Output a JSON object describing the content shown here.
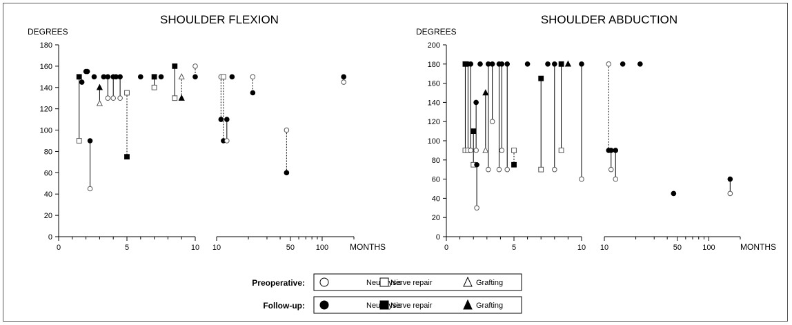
{
  "chart_data": [
    {
      "type": "scatter",
      "title": "SHOULDER FLEXION",
      "ylabel": "DEGREES",
      "xlabel": "MONTHS",
      "ylim": [
        0,
        180
      ],
      "yticks": [
        0,
        20,
        40,
        60,
        80,
        100,
        120,
        140,
        160,
        180
      ],
      "xscale": "piecewise: linear 0-10 months, logarithmic 10-200 months",
      "xtick_labels_linear": [
        "0",
        "5",
        "10"
      ],
      "xtick_labels_log": [
        "10",
        "50",
        "100"
      ],
      "xtick_values_log": [
        10,
        50,
        100
      ],
      "grid": false,
      "pairs": [
        {
          "x": 1.5,
          "pre": {
            "type": "nerve repair",
            "v": 90
          },
          "post": {
            "type": "nerve repair",
            "v": 150
          },
          "line": "solid"
        },
        {
          "x": 1.7,
          "post": {
            "type": "neurolysis",
            "v": 145
          }
        },
        {
          "x": 2.0,
          "post": {
            "type": "neurolysis",
            "v": 155
          }
        },
        {
          "x": 2.1,
          "post": {
            "type": "neurolysis",
            "v": 155
          }
        },
        {
          "x": 2.3,
          "pre": {
            "type": "neurolysis",
            "v": 45
          },
          "post": {
            "type": "neurolysis",
            "v": 90
          },
          "line": "solid"
        },
        {
          "x": 2.6,
          "post": {
            "type": "neurolysis",
            "v": 150
          }
        },
        {
          "x": 3.0,
          "pre": {
            "type": "grafting",
            "v": 125
          },
          "post": {
            "type": "grafting",
            "v": 140
          },
          "line": "solid"
        },
        {
          "x": 3.3,
          "post": {
            "type": "neurolysis",
            "v": 150
          }
        },
        {
          "x": 3.6,
          "pre": {
            "type": "neurolysis",
            "v": 130
          },
          "post": {
            "type": "neurolysis",
            "v": 150
          },
          "line": "solid"
        },
        {
          "x": 4.0,
          "pre": {
            "type": "neurolysis",
            "v": 130
          },
          "post": {
            "type": "neurolysis",
            "v": 150
          },
          "line": "solid"
        },
        {
          "x": 4.2,
          "post": {
            "type": "neurolysis",
            "v": 150
          }
        },
        {
          "x": 4.5,
          "pre": {
            "type": "neurolysis",
            "v": 130
          },
          "post": {
            "type": "neurolysis",
            "v": 150
          },
          "line": "solid"
        },
        {
          "x": 5.0,
          "pre": {
            "type": "nerve repair",
            "v": 135
          },
          "post": {
            "type": "nerve repair",
            "v": 75
          },
          "line": "dotted"
        },
        {
          "x": 6.0,
          "post": {
            "type": "neurolysis",
            "v": 150
          }
        },
        {
          "x": 7.0,
          "pre": {
            "type": "nerve repair",
            "v": 140
          },
          "post": {
            "type": "nerve repair",
            "v": 150
          },
          "line": "solid"
        },
        {
          "x": 7.5,
          "post": {
            "type": "neurolysis",
            "v": 150
          }
        },
        {
          "x": 8.5,
          "pre": {
            "type": "nerve repair",
            "v": 130
          },
          "post": {
            "type": "nerve repair",
            "v": 160
          },
          "line": "solid"
        },
        {
          "x": 9.0,
          "pre": {
            "type": "grafting",
            "v": 150
          },
          "post": {
            "type": "grafting",
            "v": 130
          },
          "line": "dotted"
        },
        {
          "x": 10.0,
          "pre": {
            "type": "neurolysis",
            "v": 160
          },
          "post": {
            "type": "neurolysis",
            "v": 150
          },
          "line": "dotted"
        },
        {
          "x": 11.0,
          "pre": {
            "type": "neurolysis",
            "v": 150
          },
          "post": {
            "type": "neurolysis",
            "v": 110
          },
          "line": "dotted"
        },
        {
          "x": 11.6,
          "pre": {
            "type": "nerve repair",
            "v": 150
          },
          "post": {
            "type": "neurolysis",
            "v": 90
          },
          "line": "dotted"
        },
        {
          "x": 12.5,
          "pre": {
            "type": "neurolysis",
            "v": 90
          },
          "post": {
            "type": "neurolysis",
            "v": 110
          },
          "line": "solid"
        },
        {
          "x": 14.0,
          "post": {
            "type": "neurolysis",
            "v": 150
          }
        },
        {
          "x": 22.0,
          "pre": {
            "type": "neurolysis",
            "v": 150
          },
          "post": {
            "type": "neurolysis",
            "v": 135
          },
          "line": "dotted"
        },
        {
          "x": 46.0,
          "pre": {
            "type": "neurolysis",
            "v": 100
          },
          "post": {
            "type": "neurolysis",
            "v": 60
          },
          "line": "dotted"
        },
        {
          "x": 160.0,
          "pre": {
            "type": "neurolysis",
            "v": 145
          },
          "post": {
            "type": "neurolysis",
            "v": 150
          },
          "line": "solid"
        }
      ]
    },
    {
      "type": "scatter",
      "title": "SHOULDER ABDUCTION",
      "ylabel": "DEGREES",
      "xlabel": "MONTHS",
      "ylim": [
        0,
        200
      ],
      "yticks": [
        0,
        20,
        40,
        60,
        80,
        100,
        120,
        140,
        160,
        180,
        200
      ],
      "xscale": "piecewise: linear 0-10 months, logarithmic 10-200 months",
      "xtick_labels_linear": [
        "0",
        "5",
        "10"
      ],
      "xtick_labels_log": [
        "10",
        "50",
        "100"
      ],
      "xtick_values_log": [
        10,
        50,
        100
      ],
      "grid": false,
      "pairs": [
        {
          "x": 1.4,
          "pre": {
            "type": "nerve repair",
            "v": 90
          },
          "post": {
            "type": "nerve repair",
            "v": 180
          },
          "line": "solid"
        },
        {
          "x": 1.6,
          "pre": {
            "type": "nerve repair",
            "v": 90
          },
          "post": {
            "type": "neurolysis",
            "v": 180
          },
          "line": "solid"
        },
        {
          "x": 1.8,
          "pre": {
            "type": "neurolysis",
            "v": 90
          },
          "post": {
            "type": "neurolysis",
            "v": 180
          },
          "line": "solid"
        },
        {
          "x": 2.0,
          "pre": {
            "type": "nerve repair",
            "v": 75
          },
          "post": {
            "type": "nerve repair",
            "v": 110
          },
          "line": "solid"
        },
        {
          "x": 2.2,
          "pre": {
            "type": "neurolysis",
            "v": 90
          },
          "post": {
            "type": "neurolysis",
            "v": 140
          },
          "line": "solid"
        },
        {
          "x": 2.25,
          "pre": {
            "type": "neurolysis",
            "v": 30
          },
          "post": {
            "type": "neurolysis",
            "v": 75
          },
          "line": "solid"
        },
        {
          "x": 2.5,
          "post": {
            "type": "neurolysis",
            "v": 180
          }
        },
        {
          "x": 2.9,
          "pre": {
            "type": "grafting",
            "v": 90
          },
          "post": {
            "type": "grafting",
            "v": 150
          },
          "line": "solid"
        },
        {
          "x": 3.1,
          "pre": {
            "type": "neurolysis",
            "v": 70
          },
          "post": {
            "type": "neurolysis",
            "v": 180
          },
          "line": "solid"
        },
        {
          "x": 3.4,
          "pre": {
            "type": "neurolysis",
            "v": 120
          },
          "post": {
            "type": "neurolysis",
            "v": 180
          },
          "line": "solid"
        },
        {
          "x": 3.9,
          "pre": {
            "type": "neurolysis",
            "v": 70
          },
          "post": {
            "type": "neurolysis",
            "v": 180
          },
          "line": "solid"
        },
        {
          "x": 4.1,
          "pre": {
            "type": "neurolysis",
            "v": 90
          },
          "post": {
            "type": "neurolysis",
            "v": 180
          },
          "line": "solid"
        },
        {
          "x": 4.5,
          "pre": {
            "type": "neurolysis",
            "v": 70
          },
          "post": {
            "type": "neurolysis",
            "v": 180
          },
          "line": "solid"
        },
        {
          "x": 5.0,
          "pre": {
            "type": "nerve repair",
            "v": 90
          },
          "post": {
            "type": "nerve repair",
            "v": 75
          },
          "line": "dotted"
        },
        {
          "x": 6.0,
          "post": {
            "type": "neurolysis",
            "v": 180
          }
        },
        {
          "x": 7.0,
          "pre": {
            "type": "nerve repair",
            "v": 70
          },
          "post": {
            "type": "nerve repair",
            "v": 165
          },
          "line": "solid"
        },
        {
          "x": 7.5,
          "post": {
            "type": "neurolysis",
            "v": 180
          }
        },
        {
          "x": 8.0,
          "pre": {
            "type": "neurolysis",
            "v": 70
          },
          "post": {
            "type": "neurolysis",
            "v": 180
          },
          "line": "solid"
        },
        {
          "x": 8.5,
          "pre": {
            "type": "nerve repair",
            "v": 90
          },
          "post": {
            "type": "nerve repair",
            "v": 180
          },
          "line": "solid"
        },
        {
          "x": 9.0,
          "post": {
            "type": "grafting",
            "v": 180
          }
        },
        {
          "x": 10.0,
          "pre": {
            "type": "neurolysis",
            "v": 60
          },
          "post": {
            "type": "neurolysis",
            "v": 180
          },
          "line": "solid"
        },
        {
          "x": 11.0,
          "pre": {
            "type": "neurolysis",
            "v": 180
          },
          "post": {
            "type": "neurolysis",
            "v": 90
          },
          "line": "dotted"
        },
        {
          "x": 11.6,
          "pre": {
            "type": "neurolysis",
            "v": 70
          },
          "post": {
            "type": "neurolysis",
            "v": 90
          },
          "line": "solid"
        },
        {
          "x": 12.8,
          "pre": {
            "type": "neurolysis",
            "v": 60
          },
          "post": {
            "type": "neurolysis",
            "v": 90
          },
          "line": "solid"
        },
        {
          "x": 15.0,
          "post": {
            "type": "neurolysis",
            "v": 180
          }
        },
        {
          "x": 22.0,
          "post": {
            "type": "neurolysis",
            "v": 180
          }
        },
        {
          "x": 46.0,
          "post": {
            "type": "neurolysis",
            "v": 45
          }
        },
        {
          "x": 160.0,
          "pre": {
            "type": "neurolysis",
            "v": 45
          },
          "post": {
            "type": "neurolysis",
            "v": 60
          },
          "line": "solid"
        }
      ]
    }
  ],
  "legend": {
    "rows": [
      {
        "label": "Preoperative:",
        "filled": false,
        "items": [
          {
            "marker": "circle",
            "label": "Neurolysis"
          },
          {
            "marker": "square",
            "label": "Nerve repair"
          },
          {
            "marker": "triangle",
            "label": "Grafting"
          }
        ]
      },
      {
        "label": "Follow-up:",
        "filled": true,
        "items": [
          {
            "marker": "circle",
            "label": "Neurolysis"
          },
          {
            "marker": "square",
            "label": "Nerve repair"
          },
          {
            "marker": "triangle",
            "label": "Grafting"
          }
        ]
      }
    ]
  },
  "colors": {
    "ink": "#000000",
    "pre_marker_stroke": "#555555",
    "frame": "#555555"
  }
}
